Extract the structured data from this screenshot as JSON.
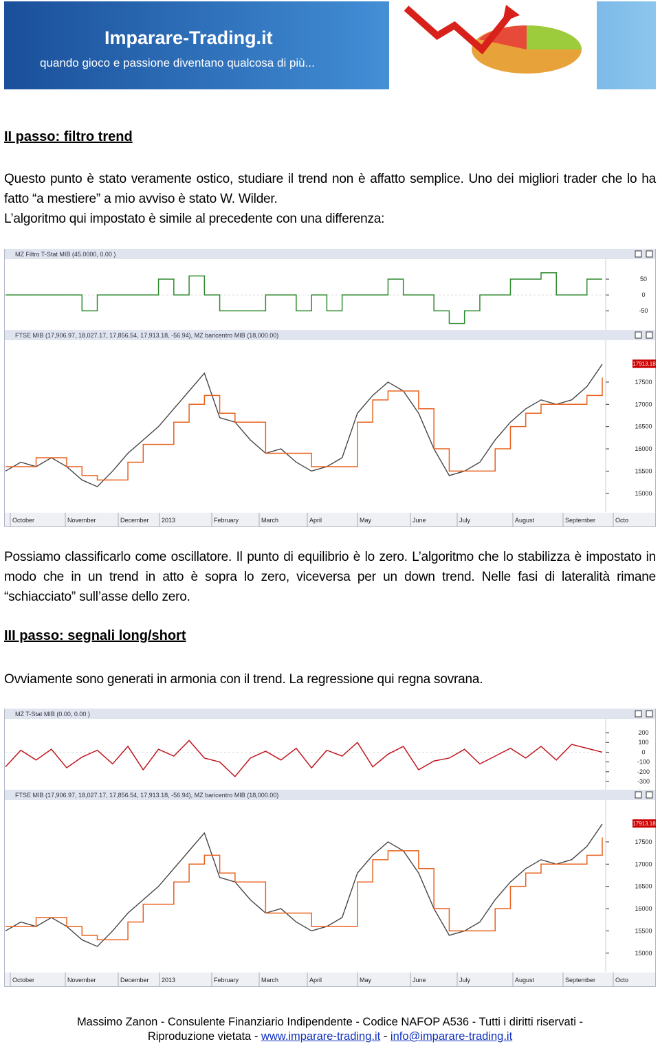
{
  "header": {
    "site": "Imparare-Trading.it",
    "tagline": "quando gioco e passione diventano qualcosa di più..."
  },
  "section1": {
    "heading": "II passo: filtro trend",
    "paragraphs": [
      "Questo punto è stato veramente ostico, studiare il trend non è affatto semplice. Uno dei migliori trader che lo ha fatto “a mestiere” a mio avviso è stato W. Wilder.",
      "L’algoritmo qui impostato è simile al precedente con una differenza:"
    ]
  },
  "paragraph2": "Possiamo classificarlo come oscillatore. Il punto di equilibrio è lo zero. L’algoritmo che lo stabilizza è impostato in modo che in un trend in atto è sopra lo zero, viceversa per un down trend. Nelle fasi di lateralità rimane “schiacciato” sull’asse dello zero.",
  "section2": {
    "heading": "III passo: segnali long/short",
    "paragraphs": [
      "Ovviamente sono generati in armonia con il trend. La regressione qui regna sovrana."
    ]
  },
  "figures": [
    {
      "osc": {
        "title": "MZ Filtro T-Stat MIB (45.0000, 0.00 )",
        "color": "#2e8b2e",
        "ylim": [
          -106,
          111
        ],
        "yticks": [
          50,
          0,
          -50
        ],
        "values": [
          0,
          0,
          0,
          0,
          0,
          -50,
          0,
          0,
          0,
          0,
          50,
          0,
          60,
          0,
          -50,
          -50,
          -50,
          0,
          0,
          -50,
          0,
          -50,
          0,
          0,
          0,
          50,
          0,
          0,
          -50,
          -90,
          -50,
          0,
          0,
          50,
          50,
          70,
          0,
          0,
          50,
          50
        ]
      },
      "price": {
        "title": "FTSE MIB (17,906.97, 18,027.17, 17,856.54, 17,913.18, -56.94), MZ baricentro MIB (18,000.00)",
        "ylim": [
          14580,
          18410
        ],
        "yticks": [
          17500,
          17000,
          16500,
          16000,
          15500,
          15000
        ],
        "last": 17913.18,
        "color": "#444444",
        "baricentro_color": "#e8601c",
        "close": [
          15500,
          15700,
          15600,
          15800,
          15600,
          15300,
          15150,
          15500,
          15900,
          16200,
          16500,
          16900,
          17300,
          17700,
          16700,
          16600,
          16200,
          15900,
          16000,
          15700,
          15500,
          15600,
          15800,
          16800,
          17200,
          17500,
          17300,
          16800,
          16000,
          15400,
          15500,
          15700,
          16200,
          16600,
          16900,
          17100,
          17000,
          17100,
          17400,
          17900
        ],
        "baricentro": [
          15600,
          15600,
          15800,
          15800,
          15600,
          15400,
          15300,
          15300,
          15700,
          16100,
          16100,
          16600,
          17000,
          17200,
          16800,
          16600,
          16600,
          15900,
          15900,
          15900,
          15600,
          15600,
          15600,
          16600,
          17100,
          17300,
          17300,
          16900,
          16000,
          15500,
          15500,
          15500,
          16000,
          16500,
          16800,
          17000,
          17000,
          17000,
          17200,
          17600
        ]
      },
      "months": [
        "October",
        "November",
        "December",
        "2013",
        "February",
        "March",
        "April",
        "May",
        "June",
        "July",
        "August",
        "September",
        "Octo"
      ]
    },
    {
      "osc": {
        "title": "MZ T-Stat MIB (0.00, 0.00 )",
        "color": "#c0141c",
        "ylim": [
          -370,
          334
        ],
        "yticks": [
          200,
          100,
          0,
          -100,
          -200,
          -300
        ],
        "values": [
          -150,
          20,
          -80,
          30,
          -160,
          -50,
          20,
          -120,
          60,
          -180,
          30,
          -40,
          120,
          -60,
          -100,
          -250,
          -60,
          10,
          -80,
          40,
          -160,
          20,
          -40,
          100,
          -150,
          -20,
          60,
          -180,
          -90,
          -60,
          30,
          -120,
          -40,
          40,
          -60,
          60,
          -80,
          80,
          40,
          0
        ]
      },
      "price": {
        "title": "FTSE MIB (17,906.97, 18,027.17, 17,856.54, 17,913.18, -56.94), MZ baricentro MIB (18,000.00)",
        "ylim": [
          14580,
          18410
        ],
        "yticks": [
          17500,
          17000,
          16500,
          16000,
          15500,
          15000
        ],
        "last": 17913.18,
        "color": "#444444",
        "baricentro_color": "#e8601c",
        "close": [
          15500,
          15700,
          15600,
          15800,
          15600,
          15300,
          15150,
          15500,
          15900,
          16200,
          16500,
          16900,
          17300,
          17700,
          16700,
          16600,
          16200,
          15900,
          16000,
          15700,
          15500,
          15600,
          15800,
          16800,
          17200,
          17500,
          17300,
          16800,
          16000,
          15400,
          15500,
          15700,
          16200,
          16600,
          16900,
          17100,
          17000,
          17100,
          17400,
          17900
        ],
        "baricentro": [
          15600,
          15600,
          15800,
          15800,
          15600,
          15400,
          15300,
          15300,
          15700,
          16100,
          16100,
          16600,
          17000,
          17200,
          16800,
          16600,
          16600,
          15900,
          15900,
          15900,
          15600,
          15600,
          15600,
          16600,
          17100,
          17300,
          17300,
          16900,
          16000,
          15500,
          15500,
          15500,
          16000,
          16500,
          16800,
          17000,
          17000,
          17000,
          17200,
          17600
        ]
      },
      "months": [
        "October",
        "November",
        "December",
        "2013",
        "February",
        "March",
        "April",
        "May",
        "June",
        "July",
        "August",
        "September",
        "Octo"
      ]
    }
  ],
  "footer": {
    "line1": "Massimo Zanon - Consulente Finanziario Indipendente - Codice NAFOP A536 - Tutti i diritti riservati -",
    "prefix": "Riproduzione vietata -",
    "website": "www.imparare-trading.it",
    "separator": "-",
    "email": "info@imparare-trading.it"
  }
}
